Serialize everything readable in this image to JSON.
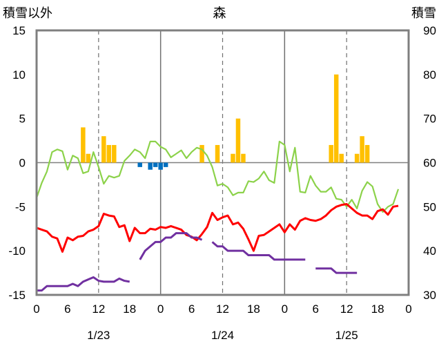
{
  "chart_data": {
    "type": "line",
    "title": "森",
    "left_axis_label": "積雪以外",
    "right_axis_label": "積雪",
    "ylim_left": [
      -15,
      15
    ],
    "ylim_right": [
      30,
      90
    ],
    "yticks_left": [
      15,
      10,
      5,
      0,
      -5,
      -10,
      -15
    ],
    "yticks_right": [
      90,
      80,
      70,
      60,
      50,
      40,
      30
    ],
    "xlim_hours": [
      0,
      72
    ],
    "xticks": [
      "0",
      "6",
      "12",
      "18",
      "0",
      "6",
      "12",
      "18",
      "0",
      "6",
      "12",
      "18",
      "0"
    ],
    "dates": [
      "1/23",
      "1/24",
      "1/25"
    ],
    "grid": "dashed vertical lines at 12:00 of each day; solid vertical lines at day boundaries",
    "colors": {
      "temperature_max": "#ff0000",
      "temperature_min": "#8cd24a",
      "precipitation": "#ffc000",
      "negative_bar": "#0070c0",
      "snow_depth": "#7030a0"
    },
    "series": [
      {
        "id": "green",
        "axis": "left",
        "kind": "line",
        "points": [
          [
            0,
            -4
          ],
          [
            1,
            -2.3
          ],
          [
            2,
            -1
          ],
          [
            3,
            1.2
          ],
          [
            4,
            1.5
          ],
          [
            5,
            1.3
          ],
          [
            6,
            -0.8
          ],
          [
            7,
            0.8
          ],
          [
            8,
            0.5
          ],
          [
            9,
            -1.2
          ],
          [
            10,
            -1
          ],
          [
            11,
            1.2
          ],
          [
            12,
            -0.5
          ],
          [
            13,
            -2.4
          ],
          [
            14,
            -1.5
          ],
          [
            15,
            -1.7
          ],
          [
            16,
            -1.5
          ],
          [
            17,
            0.2
          ],
          [
            18,
            0.8
          ],
          [
            19,
            1.5
          ],
          [
            20,
            1.2
          ],
          [
            21,
            0.5
          ],
          [
            22,
            2.4
          ],
          [
            23,
            2.4
          ],
          [
            24,
            1.8
          ],
          [
            25,
            1.5
          ],
          [
            26,
            0.6
          ],
          [
            27,
            1
          ],
          [
            28,
            1.4
          ],
          [
            29,
            0.5
          ],
          [
            30,
            1.2
          ],
          [
            31,
            1.7
          ],
          [
            32,
            1.5
          ],
          [
            33,
            0.8
          ],
          [
            34,
            -0.5
          ],
          [
            35,
            -2.6
          ],
          [
            36,
            -2.4
          ],
          [
            37,
            -2.8
          ],
          [
            38,
            -3.7
          ],
          [
            39,
            -3.4
          ],
          [
            40,
            -3.4
          ],
          [
            41,
            -2.1
          ],
          [
            42,
            -2.2
          ],
          [
            43,
            -1.8
          ],
          [
            44,
            -1
          ],
          [
            45,
            -2
          ],
          [
            46,
            -2.3
          ],
          [
            47,
            2.4
          ],
          [
            48,
            2
          ],
          [
            49,
            -1
          ],
          [
            50,
            1.7
          ],
          [
            51,
            -3.3
          ],
          [
            52,
            -3.4
          ],
          [
            53,
            -1.5
          ],
          [
            54,
            -2.6
          ],
          [
            55,
            -3.3
          ],
          [
            56,
            -3.3
          ],
          [
            57,
            -2.8
          ],
          [
            58,
            -4.1
          ],
          [
            59,
            -4.2
          ],
          [
            60,
            -5
          ],
          [
            61,
            -4.2
          ],
          [
            62,
            -5.2
          ],
          [
            63,
            -3.2
          ],
          [
            64,
            -2.2
          ],
          [
            65,
            -2.7
          ],
          [
            66,
            -4.7
          ],
          [
            67,
            -5.6
          ],
          [
            68,
            -5
          ],
          [
            69,
            -4.7
          ],
          [
            70,
            -3
          ]
        ]
      },
      {
        "id": "red",
        "axis": "left",
        "kind": "line",
        "points": [
          [
            0,
            -7.4
          ],
          [
            1,
            -7.6
          ],
          [
            2,
            -7.8
          ],
          [
            3,
            -8.4
          ],
          [
            4,
            -8.6
          ],
          [
            5,
            -10.1
          ],
          [
            6,
            -8.5
          ],
          [
            7,
            -8.8
          ],
          [
            8,
            -8.4
          ],
          [
            9,
            -8.3
          ],
          [
            10,
            -7.8
          ],
          [
            11,
            -7.6
          ],
          [
            12,
            -7.2
          ],
          [
            13,
            -5.8
          ],
          [
            14,
            -6
          ],
          [
            15,
            -6.1
          ],
          [
            16,
            -7.3
          ],
          [
            17,
            -7.1
          ],
          [
            18,
            -8.9
          ],
          [
            19,
            -7.4
          ],
          [
            20,
            -8
          ],
          [
            21,
            -8
          ],
          [
            22,
            -7.5
          ],
          [
            23,
            -7.6
          ],
          [
            24,
            -7.3
          ],
          [
            25,
            -7.4
          ],
          [
            26,
            -7.2
          ],
          [
            27,
            -7.4
          ],
          [
            28,
            -7.6
          ],
          [
            29,
            -8.2
          ],
          [
            30,
            -8.4
          ],
          [
            31,
            -8.8
          ],
          [
            32,
            -8.1
          ],
          [
            33,
            -7.3
          ],
          [
            34,
            -5.7
          ],
          [
            35,
            -6.5
          ],
          [
            36,
            -6.2
          ],
          [
            37,
            -6
          ],
          [
            38,
            -7
          ],
          [
            39,
            -6.8
          ],
          [
            40,
            -7.5
          ],
          [
            41,
            -8.7
          ],
          [
            42,
            -10
          ],
          [
            43,
            -8.3
          ],
          [
            44,
            -8.2
          ],
          [
            45,
            -7.8
          ],
          [
            46,
            -7.4
          ],
          [
            47,
            -7
          ],
          [
            48,
            -7.9
          ],
          [
            49,
            -7
          ],
          [
            50,
            -7.6
          ],
          [
            51,
            -6.6
          ],
          [
            52,
            -6.3
          ],
          [
            53,
            -6.5
          ],
          [
            54,
            -6.6
          ],
          [
            55,
            -6.4
          ],
          [
            56,
            -6
          ],
          [
            57,
            -5.4
          ],
          [
            58,
            -5
          ],
          [
            59,
            -4.8
          ],
          [
            60,
            -4.7
          ],
          [
            61,
            -5.2
          ],
          [
            62,
            -5.7
          ],
          [
            63,
            -6
          ],
          [
            64,
            -6
          ],
          [
            65,
            -6.4
          ],
          [
            66,
            -5.5
          ],
          [
            67,
            -5.3
          ],
          [
            68,
            -5.9
          ],
          [
            69,
            -5
          ],
          [
            70,
            -4.9
          ]
        ]
      },
      {
        "id": "purple",
        "axis": "right",
        "kind": "line",
        "segments": [
          [
            [
              0,
              31
            ],
            [
              1,
              31
            ],
            [
              2,
              32
            ],
            [
              3,
              32
            ],
            [
              4,
              32
            ],
            [
              5,
              32
            ],
            [
              6,
              32
            ],
            [
              7,
              32.5
            ],
            [
              8,
              32
            ],
            [
              9,
              33
            ],
            [
              10,
              33.5
            ],
            [
              11,
              34
            ],
            [
              12,
              33.2
            ],
            [
              13,
              33
            ],
            [
              14,
              33
            ],
            [
              15,
              33
            ],
            [
              16,
              33.7
            ],
            [
              17,
              33.2
            ],
            [
              18,
              33
            ]
          ],
          [
            [
              20,
              38
            ],
            [
              21,
              40
            ],
            [
              22,
              41
            ],
            [
              23,
              42
            ],
            [
              24,
              42
            ],
            [
              25,
              43
            ],
            [
              26,
              43
            ],
            [
              27,
              44
            ],
            [
              28,
              44
            ],
            [
              29,
              44
            ],
            [
              30,
              43
            ],
            [
              31,
              43
            ],
            [
              32,
              42.5
            ]
          ],
          [
            [
              34,
              42
            ],
            [
              35,
              41
            ],
            [
              36,
              41
            ],
            [
              37,
              40
            ],
            [
              38,
              40
            ],
            [
              39,
              40
            ],
            [
              40,
              40
            ],
            [
              41,
              39
            ],
            [
              42,
              39
            ],
            [
              43,
              39
            ],
            [
              44,
              39
            ],
            [
              45,
              39
            ],
            [
              46,
              38
            ],
            [
              47,
              38
            ],
            [
              48,
              38
            ],
            [
              49,
              38
            ],
            [
              50,
              38
            ],
            [
              51,
              38
            ],
            [
              52,
              38
            ]
          ],
          [
            [
              54,
              36
            ],
            [
              55,
              36
            ],
            [
              56,
              36
            ],
            [
              57,
              36
            ],
            [
              58,
              35
            ],
            [
              59,
              35
            ],
            [
              60,
              35
            ],
            [
              61,
              35
            ],
            [
              62,
              35
            ]
          ]
        ]
      },
      {
        "id": "orange-bars",
        "axis": "left",
        "kind": "bar",
        "points": [
          [
            9,
            4
          ],
          [
            10,
            1
          ],
          [
            13,
            3
          ],
          [
            14,
            2
          ],
          [
            15,
            2
          ],
          [
            32,
            2
          ],
          [
            35,
            2
          ],
          [
            38,
            1
          ],
          [
            39,
            5
          ],
          [
            40,
            1
          ],
          [
            57,
            2
          ],
          [
            58,
            10
          ],
          [
            59,
            1
          ],
          [
            62,
            1
          ],
          [
            63,
            3
          ],
          [
            64,
            2
          ]
        ]
      },
      {
        "id": "blue-bars",
        "axis": "left",
        "kind": "bar",
        "points": [
          [
            20,
            -0.5
          ],
          [
            22,
            -0.8
          ],
          [
            23,
            -0.5
          ],
          [
            24,
            -0.8
          ],
          [
            25,
            -0.5
          ]
        ]
      }
    ]
  }
}
